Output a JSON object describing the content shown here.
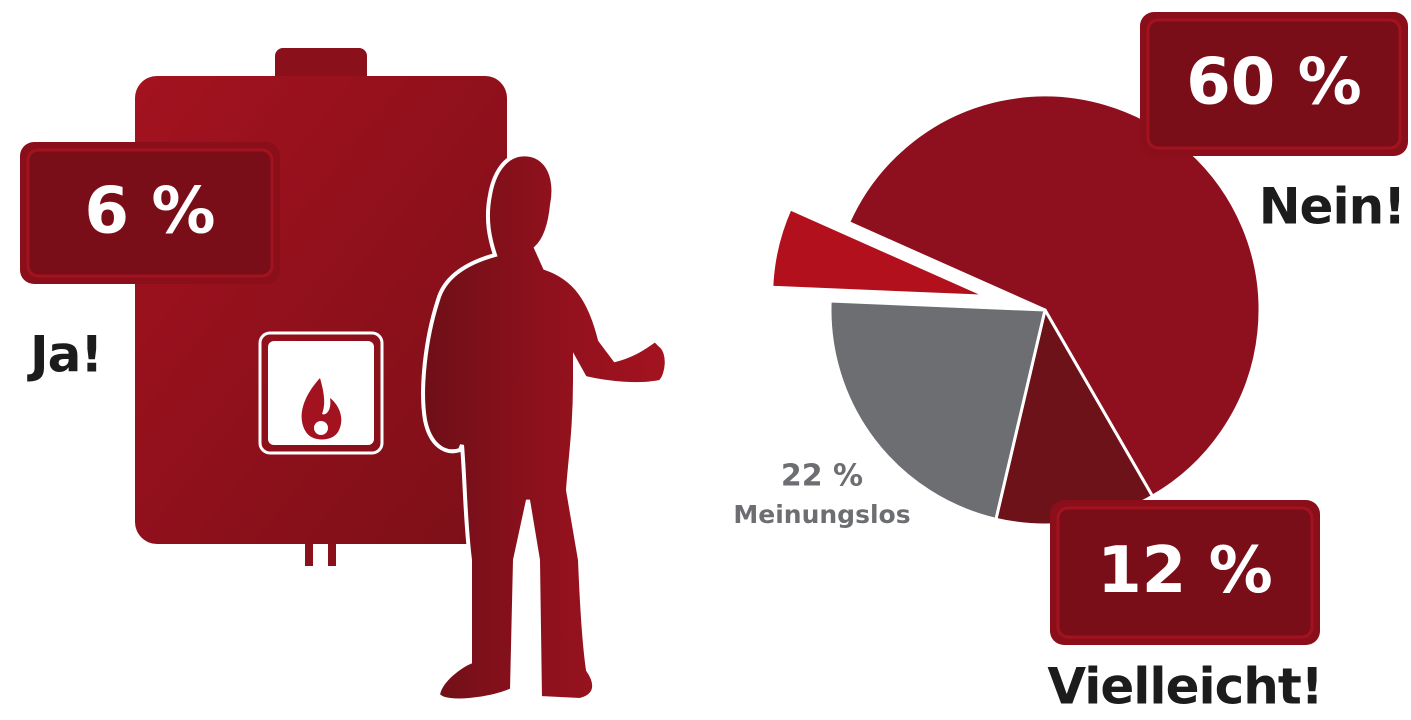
{
  "chart_data": {
    "type": "pie",
    "categories": [
      "Ja!",
      "Nein!",
      "Vielleicht!",
      "Meinungslos"
    ],
    "values": [
      6,
      60,
      12,
      22
    ],
    "value_labels": [
      "6 %",
      "60 %",
      "12 %",
      "22 %"
    ],
    "colors": [
      "#b3101d",
      "#8e0f1e",
      "#6c1218",
      "#6d6e71"
    ]
  }
}
